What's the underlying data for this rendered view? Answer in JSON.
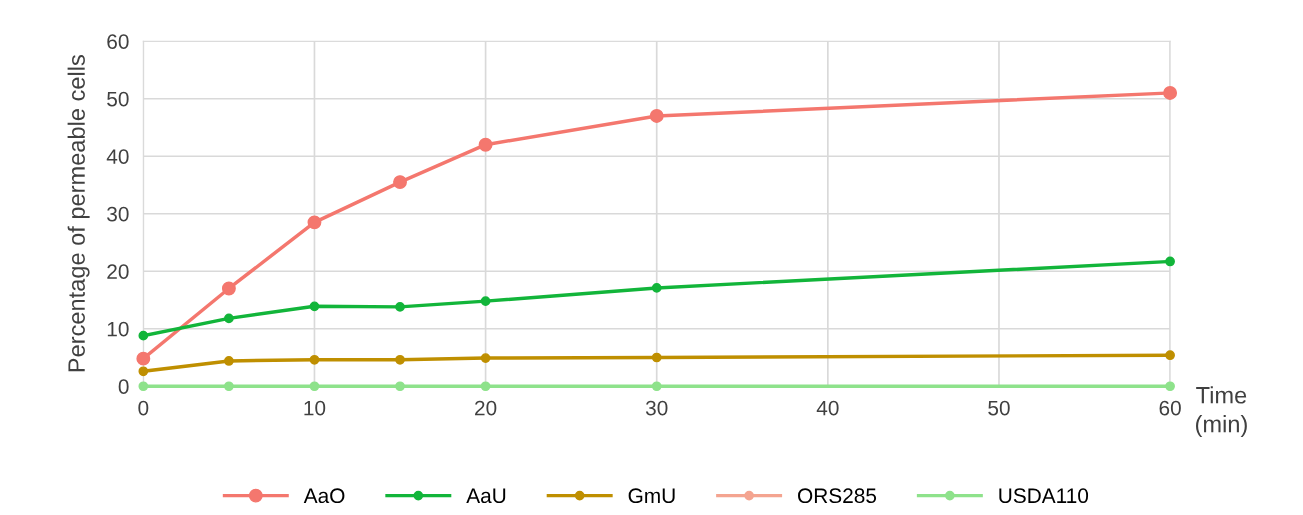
{
  "chart_data": {
    "type": "line",
    "xlabel": "Time\n(min)",
    "ylabel": "Percentage of permeable cells",
    "x": [
      0,
      5,
      10,
      15,
      20,
      30,
      60
    ],
    "series": [
      {
        "name": "AaO",
        "color": "#f4776e",
        "values": [
          4.8,
          17,
          28.5,
          35.5,
          42,
          47,
          51
        ]
      },
      {
        "name": "AaU",
        "color": "#12b53a",
        "values": [
          8.8,
          11.8,
          13.9,
          13.8,
          14.8,
          17.1,
          21.7
        ]
      },
      {
        "name": "GmU",
        "color": "#bf8f00",
        "values": [
          2.6,
          4.4,
          4.6,
          4.6,
          4.9,
          5.0,
          5.4
        ]
      },
      {
        "name": "ORS285",
        "color": "#f4a490",
        "values": [
          null,
          null,
          null,
          null,
          null,
          null,
          null
        ]
      },
      {
        "name": "USDA110",
        "color": "#8ee28b",
        "values": [
          0,
          0,
          0,
          0,
          0,
          0,
          0
        ]
      }
    ],
    "xlim": [
      0,
      60
    ],
    "xticks": [
      0,
      10,
      20,
      30,
      40,
      50,
      60
    ],
    "ylim": [
      0,
      60
    ],
    "yticks": [
      0,
      10,
      20,
      30,
      40,
      50,
      60
    ],
    "grid": true,
    "legend": "bottom",
    "marker": "circle",
    "line_style": "solid"
  }
}
